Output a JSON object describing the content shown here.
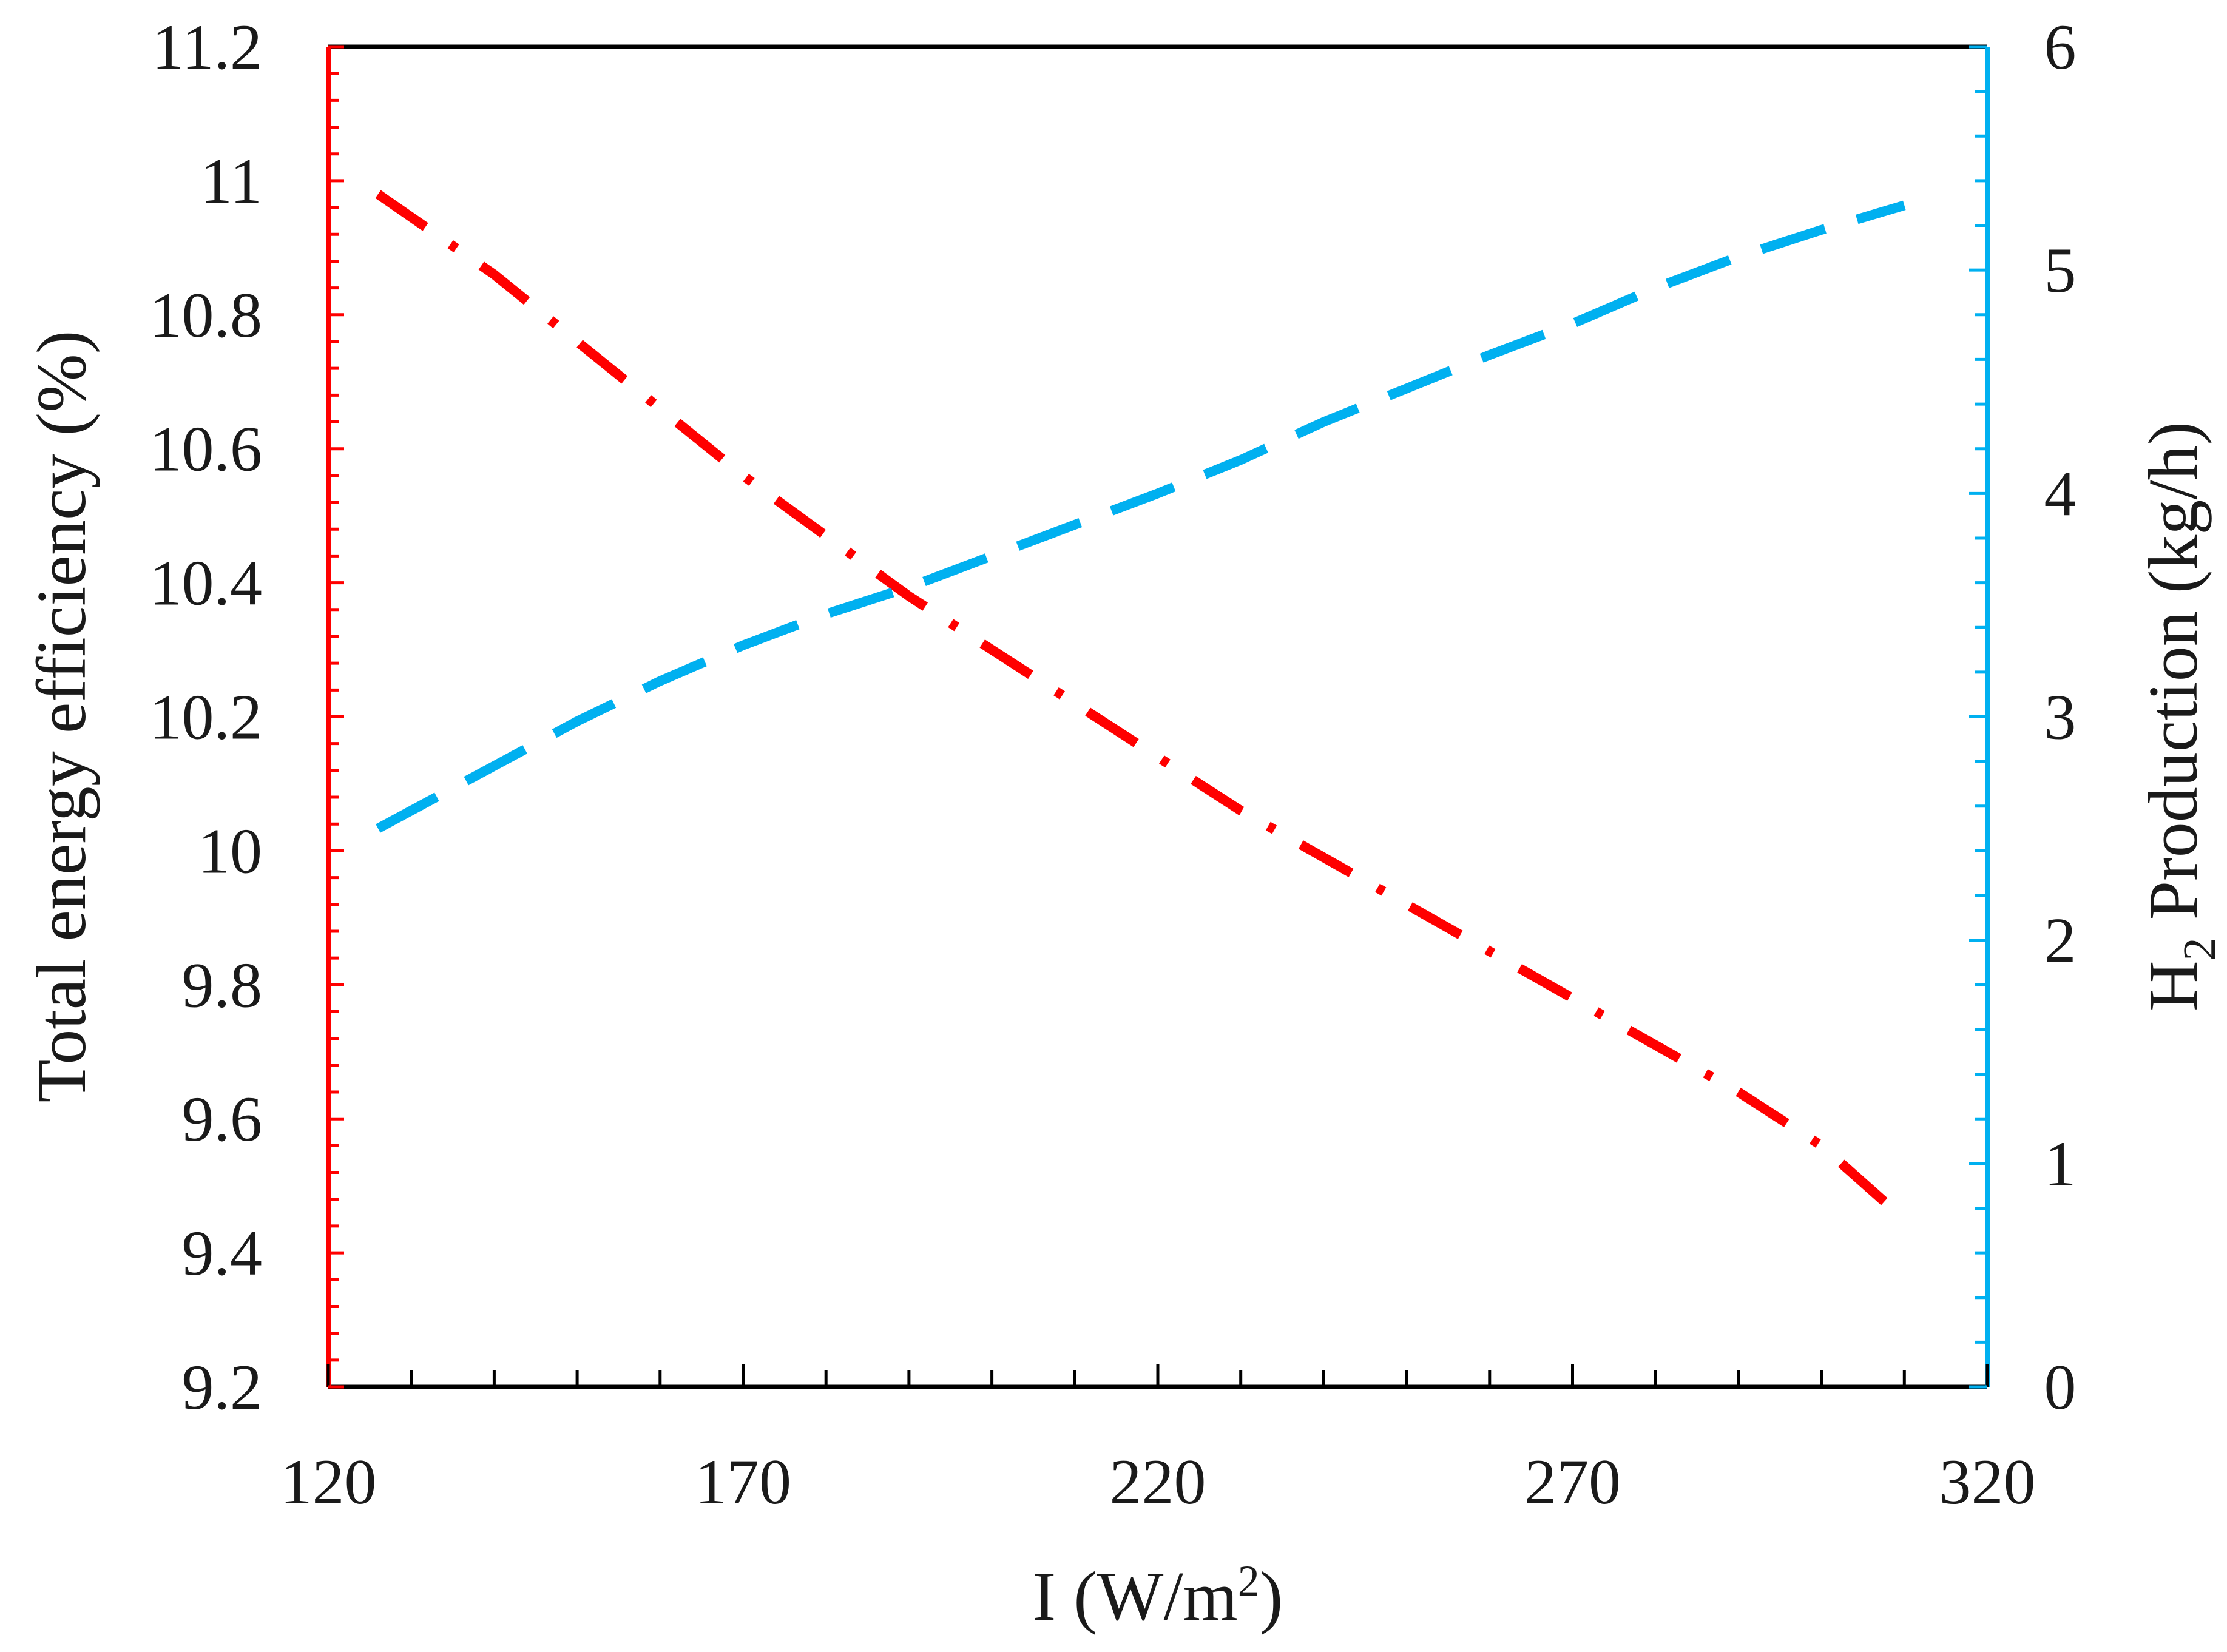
{
  "chart_data": {
    "type": "line",
    "title": "",
    "xlabel": "I (W/m²)",
    "xlabel_parts": {
      "main": "I (W/m",
      "sup": "2",
      "end": ")"
    },
    "ylabel_left": "Total energy efficiency (%)",
    "ylabel_right": "H₂ Production (kg/h)",
    "ylabel_right_parts": {
      "pre": "H",
      "sub": "2",
      "post": " Production (kg/h)"
    },
    "xlim": [
      120,
      320
    ],
    "ylim_left": [
      9.2,
      11.2
    ],
    "ylim_right": [
      0,
      6
    ],
    "x_ticks": [
      120,
      170,
      220,
      270,
      320
    ],
    "x_tick_labels": [
      "120",
      "170",
      "220",
      "270",
      "320"
    ],
    "y_left_ticks": [
      9.2,
      9.4,
      9.6,
      9.8,
      10,
      10.2,
      10.4,
      10.6,
      10.8,
      11,
      11.2
    ],
    "y_left_tick_labels": [
      "9.2",
      "9.4",
      "9.6",
      "9.8",
      "10",
      "10.2",
      "10.4",
      "10.6",
      "10.8",
      "11",
      "11.2"
    ],
    "y_right_ticks": [
      0,
      1,
      2,
      3,
      4,
      5,
      6
    ],
    "y_right_tick_labels": [
      "0",
      "1",
      "2",
      "3",
      "4",
      "5",
      "6"
    ],
    "grid": false,
    "series": [
      {
        "name": "Total energy efficiency",
        "axis": "left",
        "style": "dash-dot",
        "color": "#ff0000",
        "x": [
          126,
          140,
          150,
          160,
          170,
          180,
          190,
          200,
          210,
          220,
          230,
          240,
          250,
          260,
          270,
          280,
          290,
          300,
          310
        ],
        "y": [
          10.98,
          10.86,
          10.76,
          10.66,
          10.56,
          10.47,
          10.38,
          10.3,
          10.22,
          10.14,
          10.06,
          9.99,
          9.92,
          9.85,
          9.78,
          9.71,
          9.64,
          9.56,
          9.45
        ]
      },
      {
        "name": "H2 Production",
        "axis": "right",
        "style": "dashed",
        "color": "#00b0f0",
        "x": [
          126,
          140,
          150,
          160,
          170,
          180,
          190,
          200,
          210,
          220,
          230,
          240,
          250,
          260,
          270,
          280,
          290,
          300,
          310
        ],
        "y": [
          2.5,
          2.78,
          2.98,
          3.16,
          3.32,
          3.46,
          3.58,
          3.72,
          3.86,
          4.0,
          4.15,
          4.32,
          4.47,
          4.62,
          4.76,
          4.92,
          5.06,
          5.18,
          5.29
        ]
      }
    ],
    "colors": {
      "left_axis": "#ff0000",
      "right_axis": "#00b0f0",
      "frame": "#000000"
    }
  }
}
